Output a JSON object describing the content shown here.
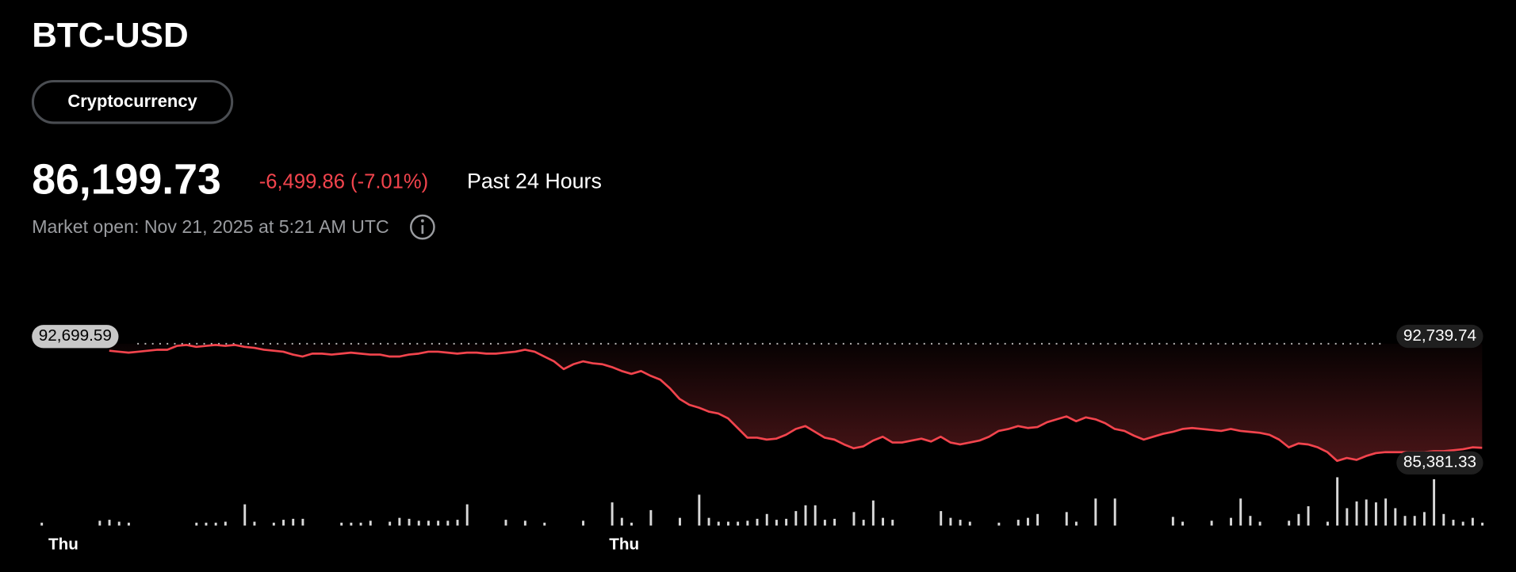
{
  "header": {
    "symbol": "BTC-USD",
    "tag": "Cryptocurrency",
    "price": "86,199.73",
    "change": "-6,499.86 (-7.01%)",
    "period": "Past 24 Hours",
    "market_open": "Market open: Nov 21, 2025 at 5:21 AM UTC"
  },
  "chart_data": {
    "type": "line",
    "categories": [
      null,
      "Thu",
      null,
      null,
      null,
      null,
      null,
      null,
      null,
      null,
      null,
      null,
      null,
      null,
      null,
      null,
      null,
      null,
      null,
      null,
      null,
      null,
      null,
      null,
      null,
      null,
      null,
      null,
      null,
      null,
      null,
      null,
      null,
      null,
      null,
      null,
      null,
      null,
      null,
      null,
      null,
      null,
      null,
      null,
      null,
      null,
      null,
      null,
      null,
      null,
      null,
      null,
      null,
      null,
      null,
      null,
      null,
      null,
      null,
      "Thu",
      null,
      null,
      null,
      null,
      null,
      null,
      null,
      null,
      null,
      null,
      null,
      null,
      null,
      null,
      null,
      null,
      null,
      null,
      null,
      null,
      null,
      null,
      null,
      null,
      null,
      null,
      null,
      null,
      null,
      null,
      null,
      null,
      null,
      null,
      null,
      null,
      null,
      null,
      null,
      null,
      null,
      null,
      null,
      null,
      null,
      null,
      null,
      null,
      null,
      null,
      null,
      null,
      null,
      null,
      null,
      null,
      null,
      null,
      null,
      null,
      null,
      null,
      null,
      null,
      null,
      null,
      null,
      null,
      null,
      null,
      null,
      null,
      null,
      null,
      null,
      null,
      null,
      null,
      null,
      null,
      null,
      null,
      null,
      null,
      null,
      null,
      null,
      null,
      null,
      null
    ],
    "series": [
      {
        "name": "BTC-USD",
        "color": "#f2444d",
        "values": [
          null,
          null,
          null,
          null,
          null,
          null,
          null,
          92262,
          92202,
          92142,
          92202,
          92262,
          92323,
          92323,
          92564,
          92624,
          92504,
          92564,
          92624,
          92564,
          92624,
          92504,
          92443,
          92323,
          92262,
          92202,
          92021,
          91900,
          92081,
          92081,
          92021,
          92081,
          92142,
          92081,
          92021,
          92021,
          91900,
          91900,
          92021,
          92081,
          92202,
          92202,
          92142,
          92081,
          92142,
          92142,
          92081,
          92081,
          92142,
          92202,
          92323,
          92202,
          91900,
          91599,
          91116,
          91418,
          91599,
          91478,
          91418,
          91237,
          90996,
          90815,
          90996,
          90694,
          90453,
          89910,
          89246,
          88884,
          88703,
          88462,
          88341,
          88040,
          87436,
          86833,
          86833,
          86712,
          86772,
          87014,
          87375,
          87557,
          87195,
          86833,
          86712,
          86410,
          86169,
          86290,
          86652,
          86893,
          86531,
          86531,
          86652,
          86772,
          86591,
          86893,
          86531,
          86410,
          86531,
          86652,
          86893,
          87255,
          87375,
          87557,
          87436,
          87496,
          87798,
          87979,
          88160,
          87858,
          88100,
          87979,
          87738,
          87375,
          87255,
          86953,
          86712,
          86893,
          87074,
          87195,
          87375,
          87436,
          87375,
          87315,
          87255,
          87375,
          87255,
          87195,
          87134,
          87014,
          86712,
          86229,
          86471,
          86410,
          86229,
          85928,
          85381.33,
          85566,
          85445,
          85687,
          85868,
          85928,
          85928,
          85928,
          85928,
          85928,
          85988,
          85988,
          86048,
          86109,
          86229,
          86199.73
        ]
      }
    ],
    "volume": [
      3,
      null,
      null,
      null,
      null,
      null,
      5,
      6,
      4,
      3,
      null,
      null,
      null,
      null,
      null,
      null,
      3,
      3,
      3,
      4,
      null,
      22,
      4,
      null,
      3,
      6,
      7,
      7,
      null,
      null,
      null,
      3,
      3,
      3,
      5,
      null,
      4,
      8,
      7,
      5,
      5,
      5,
      5,
      6,
      22,
      null,
      null,
      null,
      6,
      null,
      5,
      null,
      3,
      null,
      null,
      null,
      5,
      null,
      null,
      24,
      8,
      3,
      null,
      16,
      null,
      null,
      8,
      null,
      32,
      8,
      4,
      4,
      4,
      5,
      7,
      12,
      6,
      7,
      15,
      21,
      21,
      6,
      7,
      null,
      14,
      6,
      26,
      8,
      6,
      null,
      null,
      null,
      null,
      15,
      8,
      6,
      4,
      null,
      null,
      3,
      null,
      6,
      8,
      12,
      null,
      null,
      14,
      4,
      null,
      28,
      null,
      28,
      null,
      null,
      null,
      null,
      null,
      9,
      4,
      null,
      null,
      5,
      null,
      8,
      28,
      10,
      4,
      null,
      null,
      5,
      12,
      20,
      null,
      4,
      50,
      18,
      25,
      27,
      24,
      28,
      18,
      10,
      10,
      14,
      48,
      12,
      6,
      4,
      8,
      3
    ],
    "volume_lim": [
      0,
      55
    ],
    "ylim": [
      84600,
      93650
    ],
    "reference": {
      "value": 92699.59,
      "label": "92,699.59"
    },
    "high": {
      "value": 92739.74,
      "label": "92,739.74"
    },
    "low": {
      "value": 85381.33,
      "label": "85,381.33"
    }
  }
}
